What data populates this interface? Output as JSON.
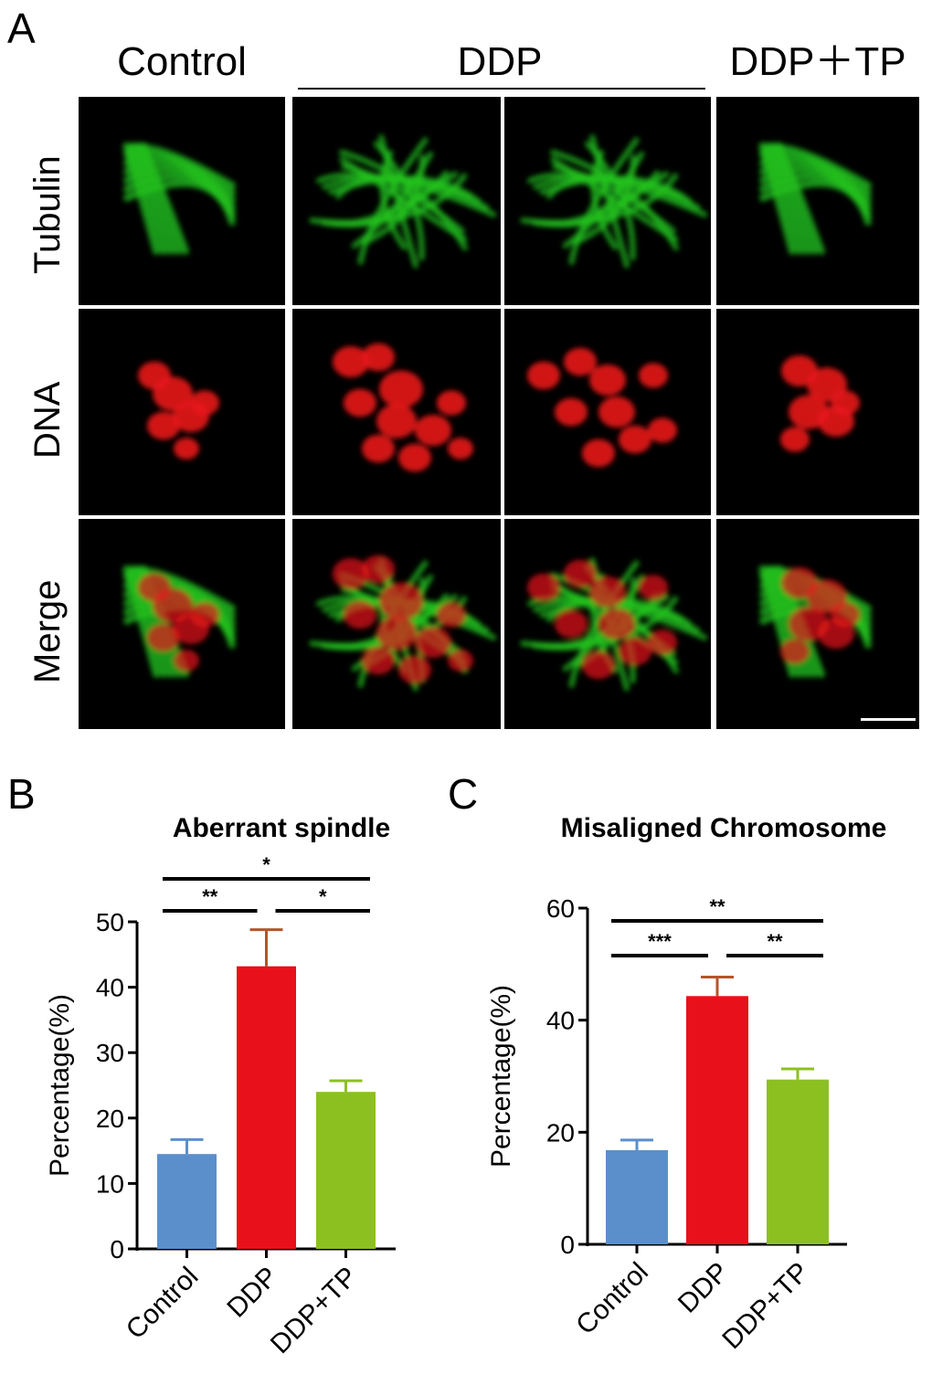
{
  "panel_a": {
    "letter": "A",
    "columns": [
      "Control",
      "DDP",
      "DDP＋TP"
    ],
    "rows": [
      "Tubulin",
      "DNA",
      "Merge"
    ],
    "colors": {
      "tubulin": "#22c41f",
      "dna": "#e8161b",
      "background": "#000000",
      "scale_bar": "#ffffff"
    }
  },
  "chart_data": [
    {
      "panel": "B",
      "type": "bar",
      "title": "Aberrant spindle",
      "ylabel": "Percentage(%)",
      "xlabel": "",
      "categories": [
        "Control",
        "DDP",
        "DDP+TP"
      ],
      "values": [
        14.5,
        43.2,
        24.0
      ],
      "errors": [
        2.2,
        5.6,
        1.7
      ],
      "colors": [
        "#5b8fcb",
        "#e8101a",
        "#8cc021"
      ],
      "error_colors": [
        "#5b8fcb",
        "#b5542d",
        "#8cc021"
      ],
      "ylim": [
        0,
        50
      ],
      "yticks": [
        0,
        10,
        20,
        30,
        40,
        50
      ],
      "significance": [
        {
          "from": 0,
          "to": 1,
          "label": "**",
          "level": 1
        },
        {
          "from": 1,
          "to": 2,
          "label": "*",
          "level": 1
        },
        {
          "from": 0,
          "to": 2,
          "label": "*",
          "level": 2
        }
      ],
      "grid": false
    },
    {
      "panel": "C",
      "type": "bar",
      "title": "Misaligned  Chromosome",
      "ylabel": "Percentage(%)",
      "xlabel": "",
      "categories": [
        "Control",
        "DDP",
        "DDP+TP"
      ],
      "values": [
        16.8,
        44.3,
        29.4
      ],
      "errors": [
        1.8,
        3.4,
        1.9
      ],
      "colors": [
        "#5b8fcb",
        "#e8101a",
        "#8cc021"
      ],
      "error_colors": [
        "#5b8fcb",
        "#b5542d",
        "#8cc021"
      ],
      "ylim": [
        0,
        60
      ],
      "yticks": [
        0,
        20,
        40,
        60
      ],
      "significance": [
        {
          "from": 0,
          "to": 1,
          "label": "***",
          "level": 1
        },
        {
          "from": 1,
          "to": 2,
          "label": "**",
          "level": 1
        },
        {
          "from": 0,
          "to": 2,
          "label": "**",
          "level": 2
        }
      ],
      "grid": false
    }
  ]
}
